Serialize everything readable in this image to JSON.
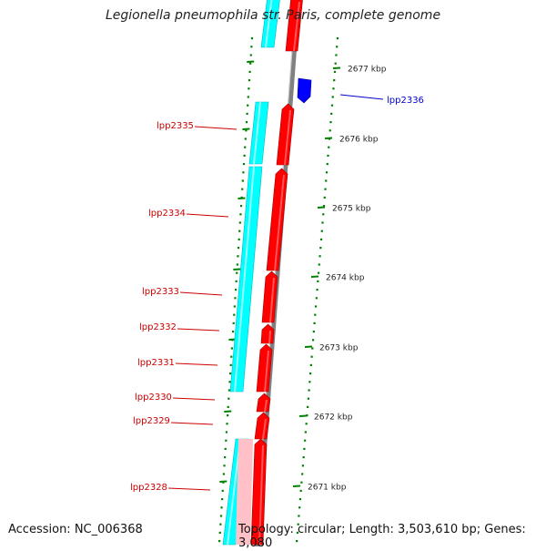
{
  "title": "Legionella pneumophila str. Paris, complete genome",
  "accession_text": "Accession: NC_006368",
  "topology_text": "Topology: circular; Length: 3,503,610 bp; Genes: 3,080",
  "colors": {
    "gene_forward": "#ff0000",
    "gene_reverse": "#0000ff",
    "cds_track": "#00ffff",
    "cds_track_light": "#ffc0c8",
    "axis": "#808080",
    "ticks": "#008000",
    "label_forward": "#cc0000",
    "label_reverse": "#0000cc"
  },
  "scale": {
    "unit": "kbp",
    "ticks": [
      {
        "label": "2677 kbp"
      },
      {
        "label": "2676 kbp"
      },
      {
        "label": "2675 kbp"
      },
      {
        "label": "2674 kbp"
      },
      {
        "label": "2673 kbp"
      },
      {
        "label": "2672 kbp"
      },
      {
        "label": "2671 kbp"
      }
    ]
  },
  "genes": [
    {
      "name": "lpp2336",
      "strand": "reverse"
    },
    {
      "name": "lpp2335",
      "strand": "forward"
    },
    {
      "name": "lpp2334",
      "strand": "forward"
    },
    {
      "name": "lpp2333",
      "strand": "forward"
    },
    {
      "name": "lpp2332",
      "strand": "forward"
    },
    {
      "name": "lpp2331",
      "strand": "forward"
    },
    {
      "name": "lpp2330",
      "strand": "forward"
    },
    {
      "name": "lpp2329",
      "strand": "forward"
    },
    {
      "name": "lpp2328",
      "strand": "forward"
    }
  ]
}
